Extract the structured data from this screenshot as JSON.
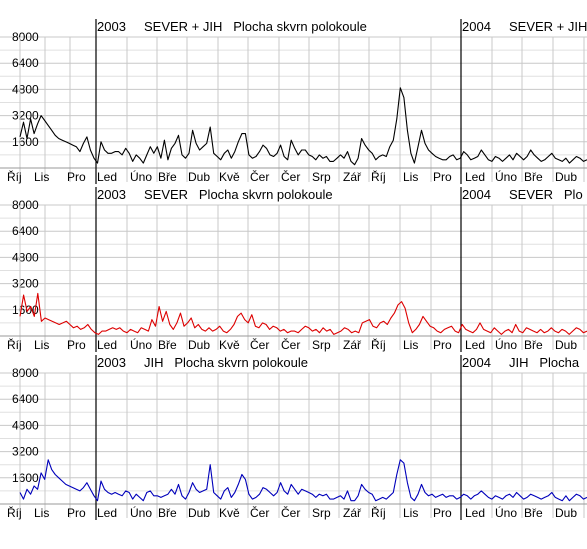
{
  "chart_data": [
    {
      "type": "line",
      "title_2003": "2003     SEVER + JIH   Plocha skvrn polokoule",
      "title_2004": "2004     SEVER + JIH",
      "color": "#000000",
      "yticks": [
        1600,
        3200,
        4800,
        6400,
        8000
      ],
      "ylim": [
        0,
        8000
      ],
      "month_labels": [
        "Říj",
        "Lis",
        "Pro",
        "Led",
        "Úno",
        "Bře",
        "Dub",
        "Kvě",
        "Čer",
        "Čer",
        "Srp",
        "Zář",
        "Říj",
        "Lis",
        "Pro",
        "Led",
        "Úno",
        "Bře",
        "Dub",
        "Kvě"
      ],
      "values": [
        1900,
        2800,
        1800,
        3000,
        2100,
        2700,
        3200,
        2900,
        2600,
        2300,
        2000,
        1800,
        1700,
        1600,
        1500,
        1400,
        1300,
        1000,
        1500,
        1900,
        1100,
        600,
        300,
        1600,
        1100,
        900,
        900,
        1000,
        1000,
        800,
        1200,
        900,
        400,
        800,
        600,
        300,
        800,
        1300,
        900,
        1300,
        600,
        1700,
        500,
        1200,
        1500,
        2000,
        800,
        600,
        900,
        2300,
        1500,
        1100,
        1300,
        1500,
        2500,
        900,
        700,
        500,
        900,
        1100,
        600,
        1000,
        1600,
        2100,
        2100,
        800,
        600,
        700,
        1000,
        1400,
        1200,
        800,
        700,
        900,
        1400,
        700,
        500,
        1700,
        1200,
        800,
        1100,
        1100,
        800,
        700,
        500,
        800,
        600,
        700,
        400,
        400,
        600,
        800,
        600,
        1000,
        400,
        200,
        600,
        1800,
        1400,
        1100,
        900,
        500,
        700,
        800,
        700,
        1300,
        1700,
        3000,
        4900,
        4300,
        2300,
        900,
        300,
        1300,
        2300,
        1500,
        1100,
        900,
        700,
        600,
        500,
        500,
        700,
        800,
        500,
        600,
        1000,
        800,
        500,
        600,
        700,
        1100,
        800,
        500,
        400,
        700,
        600,
        400,
        600,
        800,
        500,
        900,
        700,
        500,
        700,
        1100,
        800,
        600,
        400,
        500,
        700,
        900,
        600,
        500,
        400,
        600,
        300,
        500,
        700,
        600,
        400,
        500
      ]
    },
    {
      "type": "line",
      "title_2003": "2003     SEVER   Plocha skvrn polokoule",
      "title_2004": "2004     SEVER   Plo",
      "color": "#dd0000",
      "yticks": [
        1600,
        3200,
        4800,
        6400,
        8000
      ],
      "ylim": [
        0,
        8000
      ],
      "month_labels": [
        "Říj",
        "Lis",
        "Pro",
        "Led",
        "Úno",
        "Bře",
        "Dub",
        "Kvě",
        "Čer",
        "Čer",
        "Srp",
        "Zář",
        "Říj",
        "Lis",
        "Pro",
        "Led",
        "Úno",
        "Bře",
        "Dub",
        "Kvě"
      ],
      "values": [
        1200,
        2500,
        1500,
        1800,
        1200,
        2600,
        900,
        1100,
        1000,
        900,
        800,
        700,
        800,
        900,
        700,
        500,
        600,
        400,
        500,
        700,
        400,
        200,
        100,
        300,
        300,
        400,
        500,
        400,
        500,
        300,
        200,
        400,
        300,
        200,
        500,
        400,
        300,
        1000,
        600,
        1800,
        900,
        1500,
        700,
        400,
        800,
        1400,
        600,
        800,
        1100,
        500,
        700,
        400,
        300,
        500,
        300,
        400,
        600,
        300,
        200,
        400,
        700,
        1200,
        1400,
        1000,
        800,
        1300,
        600,
        500,
        800,
        700,
        400,
        600,
        500,
        300,
        400,
        200,
        300,
        300,
        200,
        400,
        600,
        500,
        300,
        400,
        200,
        500,
        300,
        400,
        100,
        200,
        300,
        500,
        400,
        200,
        300,
        200,
        800,
        900,
        1000,
        600,
        500,
        800,
        900,
        700,
        1100,
        1400,
        1900,
        2100,
        1700,
        800,
        200,
        400,
        700,
        1200,
        900,
        600,
        500,
        300,
        200,
        400,
        500,
        600,
        300,
        200,
        700,
        400,
        300,
        200,
        400,
        800,
        400,
        300,
        200,
        500,
        300,
        100,
        300,
        400,
        200,
        700,
        300,
        200,
        500,
        400,
        300,
        200,
        400,
        200,
        300,
        500,
        300,
        200,
        400,
        300,
        100,
        300,
        500,
        400,
        200,
        300
      ]
    },
    {
      "type": "line",
      "title_2003": "2003     JIH   Plocha skvrn polokoule",
      "title_2004": "2004     JIH   Plocha",
      "color": "#0000bb",
      "yticks": [
        1600,
        3200,
        4800,
        6400,
        8000
      ],
      "ylim": [
        0,
        8000
      ],
      "month_labels": [
        "Říj",
        "Lis",
        "Pro",
        "Led",
        "Úno",
        "Bře",
        "Dub",
        "Kvě",
        "Čer",
        "Čer",
        "Srp",
        "Zář",
        "Říj",
        "Lis",
        "Pro",
        "Led",
        "Úno",
        "Bře",
        "Dub",
        "Kvě"
      ],
      "values": [
        700,
        300,
        900,
        600,
        1100,
        900,
        1900,
        1500,
        2700,
        2100,
        1800,
        1600,
        1400,
        1200,
        1100,
        1000,
        900,
        800,
        1000,
        1300,
        900,
        500,
        200,
        1400,
        900,
        700,
        600,
        700,
        600,
        500,
        800,
        700,
        300,
        600,
        400,
        200,
        700,
        800,
        500,
        500,
        400,
        500,
        600,
        900,
        600,
        1200,
        500,
        300,
        700,
        1300,
        900,
        700,
        800,
        900,
        2400,
        700,
        500,
        300,
        800,
        1000,
        400,
        700,
        1200,
        1800,
        1500,
        600,
        300,
        400,
        600,
        1000,
        900,
        700,
        500,
        700,
        1300,
        800,
        600,
        1200,
        900,
        600,
        900,
        800,
        700,
        600,
        400,
        600,
        500,
        600,
        300,
        300,
        400,
        500,
        300,
        800,
        200,
        200,
        500,
        1200,
        900,
        700,
        600,
        200,
        300,
        400,
        300,
        500,
        700,
        1800,
        2700,
        2500,
        1300,
        400,
        200,
        600,
        1200,
        700,
        500,
        600,
        400,
        500,
        600,
        400,
        500,
        500,
        300,
        400,
        600,
        500,
        300,
        500,
        600,
        800,
        600,
        400,
        300,
        500,
        400,
        300,
        500,
        600,
        400,
        700,
        500,
        300,
        400,
        600,
        500,
        400,
        300,
        400,
        500,
        700,
        400,
        300,
        200,
        500,
        200,
        400,
        600,
        500,
        300,
        400
      ]
    }
  ]
}
